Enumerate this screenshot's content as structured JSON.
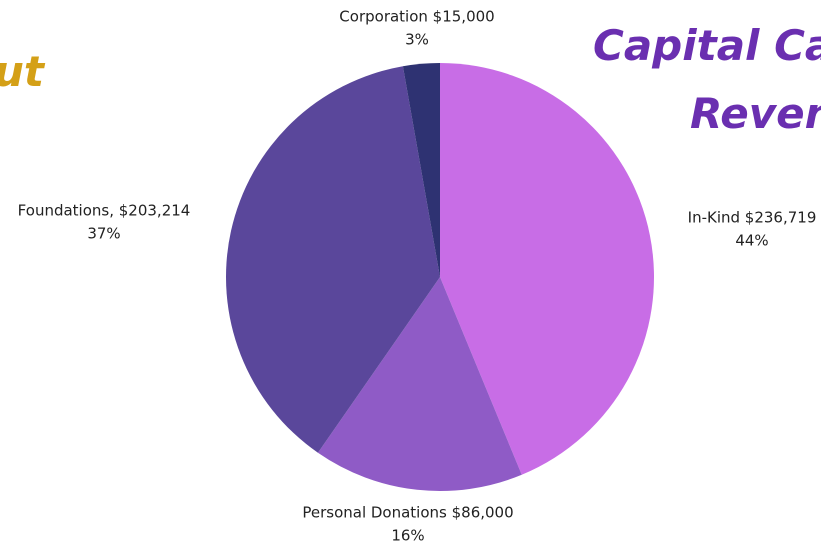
{
  "chart_data": {
    "type": "pie",
    "headings": [
      "ut",
      "Capital Ca",
      "Reven"
    ],
    "categories": [
      "In-Kind",
      "Personal Donations",
      "Foundations",
      "Corporation"
    ],
    "values": [
      236719,
      86000,
      203214,
      15000
    ],
    "value_labels": [
      "In-Kind $236,719",
      "Personal Donations $86,000",
      "Foundations, $203,214",
      "Corporation $15,000"
    ],
    "percent_labels": [
      "44%",
      "16%",
      "37%",
      "3%"
    ],
    "colors": [
      "#c86de6",
      "#8f5bc6",
      "#5a479b",
      "#2e3272"
    ]
  }
}
